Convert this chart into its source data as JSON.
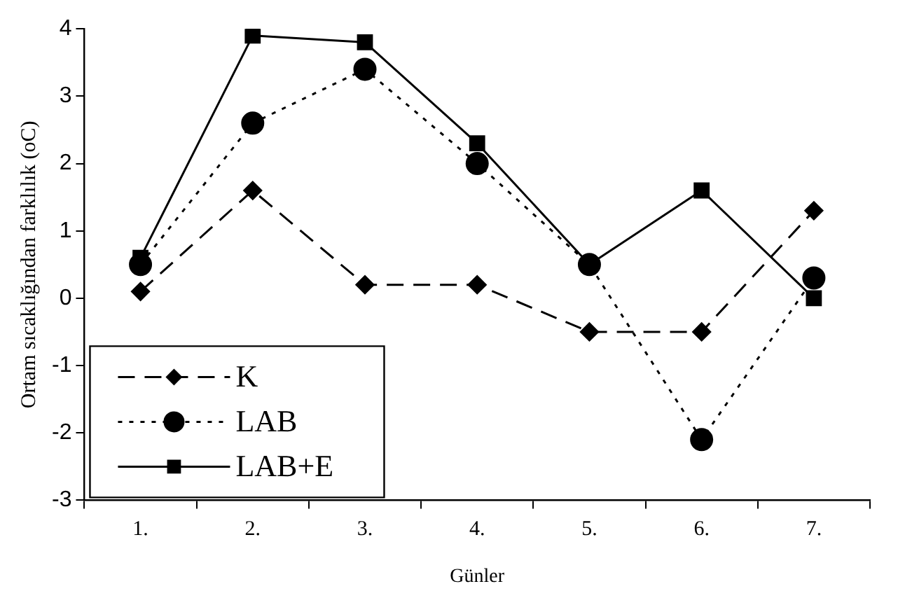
{
  "chart_data": {
    "type": "line",
    "xlabel": "Günler",
    "ylabel": "Ortam sıcaklığından farklılık (oC)",
    "categories": [
      "1.",
      "2.",
      "3.",
      "4.",
      "5.",
      "6.",
      "7."
    ],
    "series": [
      {
        "name": "K",
        "color": "#000000",
        "marker": "diamond",
        "line_style": "dashed",
        "values": [
          0.1,
          1.6,
          0.2,
          0.2,
          -0.5,
          -0.5,
          1.3
        ]
      },
      {
        "name": "LAB",
        "color": "#000000",
        "marker": "circle",
        "line_style": "dotted",
        "values": [
          0.5,
          2.6,
          3.4,
          2.0,
          0.5,
          -2.1,
          0.3
        ]
      },
      {
        "name": "LAB+E",
        "color": "#000000",
        "marker": "square",
        "line_style": "solid",
        "values": [
          0.6,
          3.9,
          3.8,
          2.3,
          0.5,
          1.6,
          0.0
        ]
      }
    ],
    "ylim": [
      -3,
      4
    ],
    "yticks": [
      -3,
      -2,
      -1,
      0,
      1,
      2,
      3,
      4
    ],
    "grid": false,
    "legend": "bottom left"
  }
}
